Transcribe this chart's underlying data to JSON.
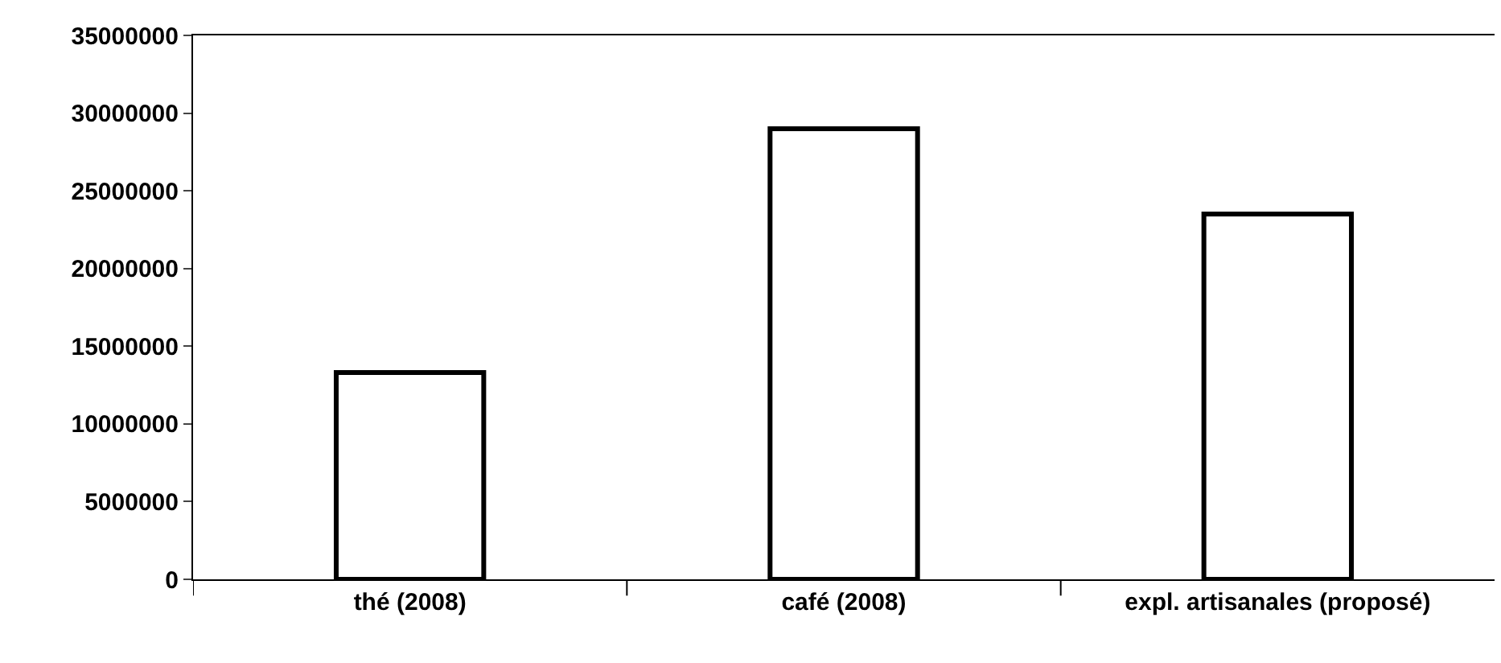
{
  "chart_data": {
    "type": "bar",
    "categories": [
      "thé (2008)",
      "café (2008)",
      "expl. artisanales (proposé)"
    ],
    "values": [
      13300000,
      29000000,
      23500000
    ],
    "color": "#ffffff",
    "ylim": [
      0,
      35000000
    ],
    "yticks": [
      0,
      5000000,
      10000000,
      15000000,
      20000000,
      25000000,
      30000000,
      35000000
    ],
    "grid": false
  }
}
